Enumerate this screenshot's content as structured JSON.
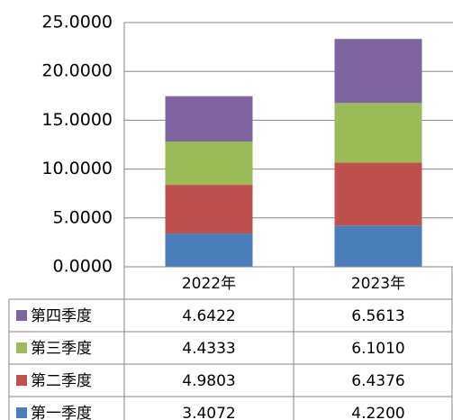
{
  "chart_data": {
    "type": "stacked-bar",
    "categories": [
      "2022年",
      "2023年"
    ],
    "series": [
      {
        "name": "第一季度",
        "color": "#4a7ebb",
        "values": [
          3.4072,
          4.22
        ],
        "value_labels": [
          "3.4072",
          "4.2200"
        ]
      },
      {
        "name": "第二季度",
        "color": "#c0504d",
        "values": [
          4.9803,
          6.4376
        ],
        "value_labels": [
          "4.9803",
          "6.4376"
        ]
      },
      {
        "name": "第三季度",
        "color": "#9bbb59",
        "values": [
          4.4333,
          6.101
        ],
        "value_labels": [
          "4.4333",
          "6.1010"
        ]
      },
      {
        "name": "第四季度",
        "color": "#8064a2",
        "values": [
          4.6422,
          6.5613
        ],
        "value_labels": [
          "4.6422",
          "6.5613"
        ]
      }
    ],
    "ylim": [
      0,
      25
    ],
    "yticks": [
      {
        "value": 0,
        "label": "0.0000"
      },
      {
        "value": 5,
        "label": "5.0000"
      },
      {
        "value": 10,
        "label": "10.0000"
      },
      {
        "value": 15,
        "label": "15.0000"
      },
      {
        "value": 20,
        "label": "20.0000"
      },
      {
        "value": 25,
        "label": "25.0000"
      }
    ],
    "grid": true
  }
}
